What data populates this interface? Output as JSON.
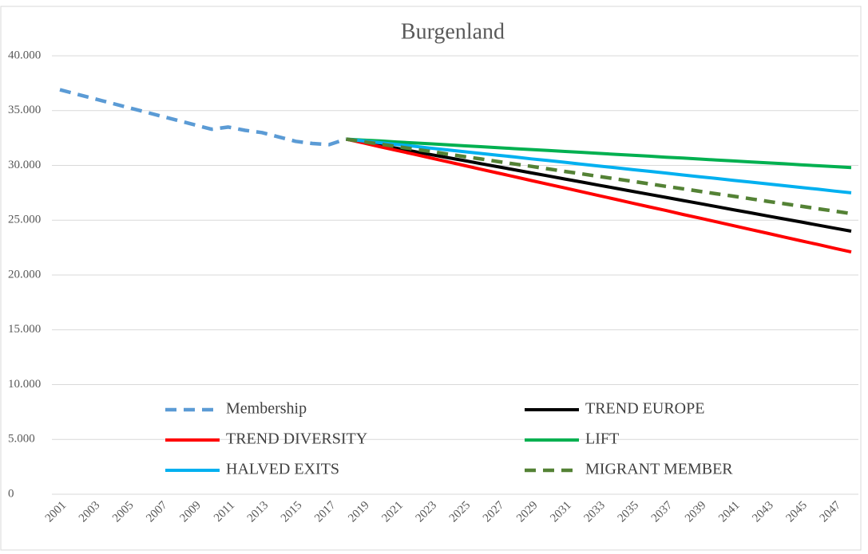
{
  "chart_data": {
    "type": "line",
    "title": "Burgenland",
    "categories": [
      "2001",
      null,
      "2003",
      null,
      "2005",
      null,
      "2007",
      null,
      "2009",
      null,
      "2011",
      null,
      "2013",
      null,
      "2015",
      null,
      "2017",
      null,
      "2019",
      null,
      "2021",
      null,
      "2023",
      null,
      "2025",
      null,
      "2027",
      null,
      "2029",
      null,
      "2031",
      null,
      "2033",
      null,
      "2035",
      null,
      "2037",
      null,
      "2039",
      null,
      "2041",
      null,
      "2043",
      null,
      "2045",
      null,
      "2047",
      null
    ],
    "ylim": [
      0,
      40000
    ],
    "yticks": [
      0,
      {
        "value": 5000,
        "label": "5.000"
      },
      {
        "value": 10000,
        "label": "10.000"
      },
      {
        "value": 15000,
        "label": "15.000"
      },
      {
        "value": 20000,
        "label": "20.000"
      },
      {
        "value": 25000,
        "label": "25.000"
      },
      {
        "value": 30000,
        "label": "30.000"
      },
      {
        "value": 35000,
        "label": "35.000"
      },
      {
        "value": 40000,
        "label": "40.000"
      }
    ],
    "grid": true,
    "series": [
      {
        "name": "Membership",
        "color": "#5b9bd5",
        "dashed": true,
        "values": [
          36900,
          36500,
          36100,
          35700,
          35300,
          34900,
          34500,
          34100,
          33700,
          33300,
          33500,
          33200,
          33000,
          32600,
          32200,
          32000,
          31900,
          32400,
          null,
          null,
          null,
          null,
          null,
          null,
          null,
          null,
          null,
          null,
          null,
          null,
          null,
          null,
          null,
          null,
          null,
          null,
          null,
          null,
          null,
          null,
          null,
          null,
          null,
          null,
          null,
          null,
          null,
          null
        ]
      },
      {
        "name": "TREND EUROPE",
        "color": "#000000",
        "dashed": false,
        "values": [
          null,
          null,
          null,
          null,
          null,
          null,
          null,
          null,
          null,
          null,
          null,
          null,
          null,
          null,
          null,
          null,
          null,
          32400,
          32120,
          31840,
          31560,
          31280,
          31000,
          30720,
          30440,
          30160,
          29880,
          29600,
          29320,
          29040,
          28760,
          28480,
          28200,
          27920,
          27640,
          27360,
          27080,
          26800,
          26520,
          26240,
          25960,
          25680,
          25400,
          25120,
          24840,
          24560,
          24280,
          24000
        ]
      },
      {
        "name": "TREND DIVERSITY",
        "color": "#ff0000",
        "dashed": false,
        "values": [
          null,
          null,
          null,
          null,
          null,
          null,
          null,
          null,
          null,
          null,
          null,
          null,
          null,
          null,
          null,
          null,
          null,
          32400,
          32060,
          31710,
          31370,
          31030,
          30680,
          30340,
          30000,
          29650,
          29310,
          28970,
          28620,
          28280,
          27940,
          27590,
          27250,
          26910,
          26560,
          26220,
          25880,
          25530,
          25190,
          24850,
          24500,
          24160,
          23820,
          23470,
          23130,
          22790,
          22440,
          22100
        ]
      },
      {
        "name": "LIFT",
        "color": "#00b050",
        "dashed": false,
        "values": [
          null,
          null,
          null,
          null,
          null,
          null,
          null,
          null,
          null,
          null,
          null,
          null,
          null,
          null,
          null,
          null,
          null,
          32400,
          32310,
          32230,
          32140,
          32050,
          31970,
          31880,
          31790,
          31710,
          31620,
          31530,
          31450,
          31360,
          31270,
          31190,
          31100,
          31010,
          30930,
          30840,
          30750,
          30670,
          30580,
          30490,
          30410,
          30320,
          30230,
          30150,
          30060,
          29970,
          29890,
          29800
        ]
      },
      {
        "name": "HALVED EXITS",
        "color": "#00b0f0",
        "dashed": false,
        "values": [
          null,
          null,
          null,
          null,
          null,
          null,
          null,
          null,
          null,
          null,
          null,
          null,
          null,
          null,
          null,
          null,
          null,
          32400,
          32240,
          32070,
          31910,
          31750,
          31580,
          31420,
          31260,
          31090,
          30930,
          30770,
          30600,
          30440,
          30280,
          30110,
          29950,
          29790,
          29620,
          29460,
          29300,
          29130,
          28970,
          28810,
          28640,
          28480,
          28320,
          28150,
          27990,
          27830,
          27660,
          27500
        ]
      },
      {
        "name": "MIGRANT MEMBER",
        "color": "#548235",
        "dashed": true,
        "values": [
          null,
          null,
          null,
          null,
          null,
          null,
          null,
          null,
          null,
          null,
          null,
          null,
          null,
          null,
          null,
          null,
          null,
          32400,
          32170,
          31950,
          31720,
          31490,
          31270,
          31040,
          30810,
          30590,
          30360,
          30130,
          29910,
          29680,
          29450,
          29230,
          29000,
          28770,
          28550,
          28320,
          28090,
          27870,
          27640,
          27410,
          27190,
          26960,
          26730,
          26510,
          26280,
          26050,
          25830,
          25600
        ]
      }
    ]
  }
}
